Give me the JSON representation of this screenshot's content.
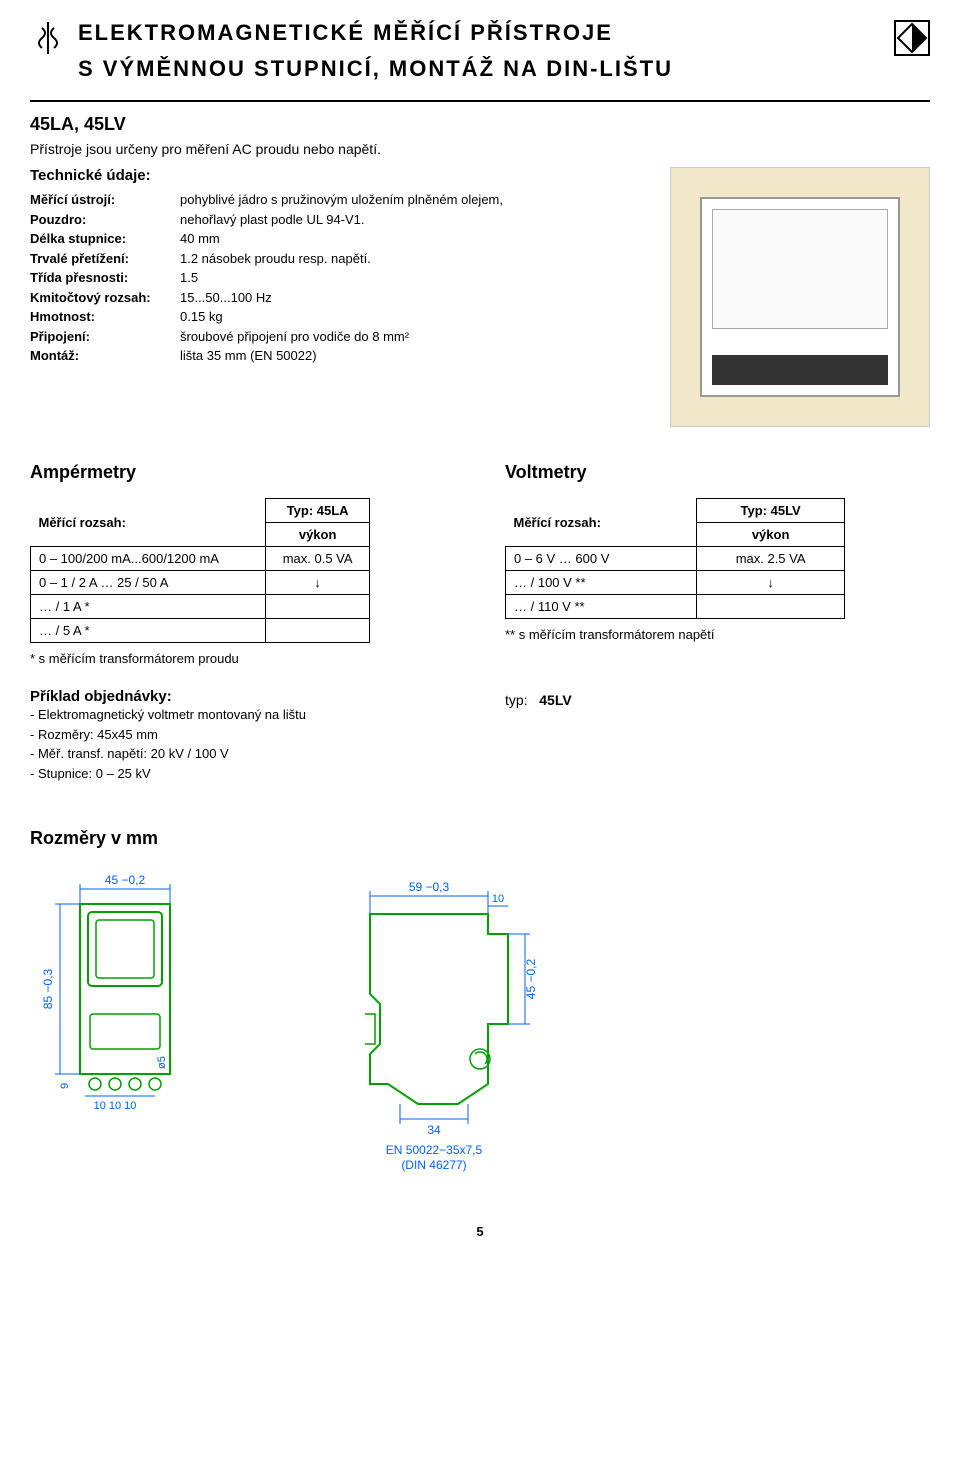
{
  "header": {
    "title1": "ELEKTROMAGNETICKÉ MĚŘÍCÍ PŘÍSTROJE",
    "title2": "S VÝMĚNNOU STUPNICÍ, MONTÁŽ NA DIN-LIŠTU"
  },
  "subtitle_code": "45LA, 45LV",
  "intro": "Přístroje jsou určeny pro měření AC proudu nebo napětí.",
  "tech_heading": "Technické údaje:",
  "specs": [
    {
      "label": "Měřící ústrojí:",
      "value": "pohyblivé jádro s pružinovým uložením plněném olejem,"
    },
    {
      "label": "Pouzdro:",
      "value": "nehořlavý plast podle UL 94-V1."
    },
    {
      "label": "Délka stupnice:",
      "value": "40 mm"
    },
    {
      "label": "Trvalé přetížení:",
      "value": "1.2 násobek proudu resp. napětí."
    },
    {
      "label": "Třída přesnosti:",
      "value": "1.5"
    },
    {
      "label": "Kmitočtový rozsah:",
      "value": "15...50...100 Hz"
    },
    {
      "label": "Hmotnost:",
      "value": "0.15 kg"
    },
    {
      "label": "Připojení:",
      "value": "šroubové připojení pro vodiče do 8 mm²"
    },
    {
      "label": "Montáž:",
      "value": "lišta 35 mm (EN 50022)"
    }
  ],
  "amper": {
    "title": "Ampérmetry",
    "header_type": "Typ: 45LA",
    "header_range": "Měřící rozsah:",
    "header_vykon": "výkon",
    "rows": [
      {
        "range": "0 – 100/200 mA...600/1200 mA",
        "vykon": "max. 0.5 VA"
      },
      {
        "range": "0 – 1 / 2 A … 25 / 50 A",
        "vykon": "↓"
      },
      {
        "range": "… / 1 A *",
        "vykon": ""
      },
      {
        "range": "… / 5 A *",
        "vykon": ""
      }
    ],
    "footnote": "* s měřícím transformátorem proudu"
  },
  "volt": {
    "title": "Voltmetry",
    "header_type": "Typ: 45LV",
    "header_range": "Měřící rozsah:",
    "header_vykon": "výkon",
    "rows": [
      {
        "range": "0 – 6 V … 600 V",
        "vykon": "max. 2.5 VA"
      },
      {
        "range": "… / 100 V **",
        "vykon": "↓"
      },
      {
        "range": "… / 110 V **",
        "vykon": ""
      }
    ],
    "footnote": "** s měřícím transformátorem napětí"
  },
  "example": {
    "title": "Příklad objednávky:",
    "lines": [
      "- Elektromagnetický voltmetr montovaný na lištu",
      "- Rozměry:        45x45 mm",
      "- Měř. transf. napětí: 20 kV / 100 V",
      "- Stupnice:        0 – 25 kV"
    ],
    "typ_label": "typ:",
    "typ_value": "45LV"
  },
  "dims": {
    "title": "Rozměry v mm",
    "front": {
      "width_label": "45 −0,2",
      "height_label": "85 −0,3",
      "term_spacing": "10 10 10",
      "phi": "ø5",
      "row_offset": "9",
      "stroke": "#00a000",
      "dim_color": "#0060ff"
    },
    "side": {
      "width_label": "59 −0,3",
      "right_offset": "10",
      "height_label": "45 −0,2",
      "depth_label": "34",
      "rail_label": "EN 50022−35x7,5",
      "rail_sub": "(DIN 46277)",
      "stroke": "#00a000",
      "dim_color": "#0060ff"
    }
  },
  "page_number": "5"
}
